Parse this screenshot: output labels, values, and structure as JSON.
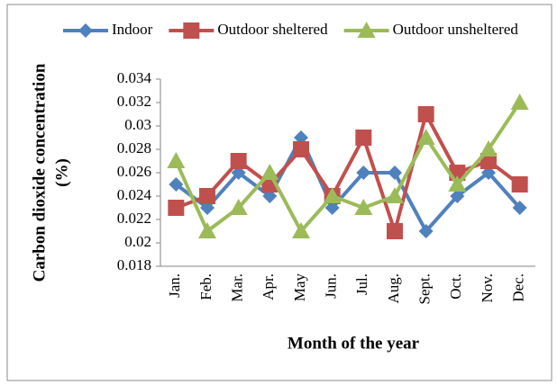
{
  "chart_data": {
    "type": "line",
    "x_label": "Month of the year",
    "y_label": [
      "Carbon dioxide concentration",
      "(%)"
    ],
    "categories": [
      "Jan.",
      "Feb.",
      "Mar.",
      "Apr.",
      "May",
      "Jun.",
      "Jul.",
      "Aug.",
      "Sept.",
      "Oct.",
      "Nov.",
      "Dec."
    ],
    "series": [
      {
        "name": "Indoor",
        "color": "#4f81bd",
        "marker": "diamond",
        "values": [
          0.025,
          0.023,
          0.026,
          0.024,
          0.029,
          0.023,
          0.026,
          0.026,
          0.021,
          0.024,
          0.026,
          0.023
        ]
      },
      {
        "name": "Outdoor sheltered",
        "color": "#c0504d",
        "marker": "square",
        "values": [
          0.023,
          0.024,
          0.027,
          0.025,
          0.028,
          0.024,
          0.029,
          0.021,
          0.031,
          0.026,
          0.027,
          0.025
        ]
      },
      {
        "name": "Outdoor unsheltered",
        "color": "#9bbb59",
        "marker": "triangle",
        "values": [
          0.027,
          0.021,
          0.023,
          0.026,
          0.021,
          0.024,
          0.023,
          0.024,
          0.029,
          0.025,
          0.028,
          0.032
        ]
      }
    ],
    "ylim": [
      0.018,
      0.034
    ],
    "yticks": [
      0.018,
      0.02,
      0.022,
      0.024,
      0.026,
      0.028,
      0.03,
      0.032,
      0.034
    ],
    "grid": false,
    "legend": "top"
  }
}
